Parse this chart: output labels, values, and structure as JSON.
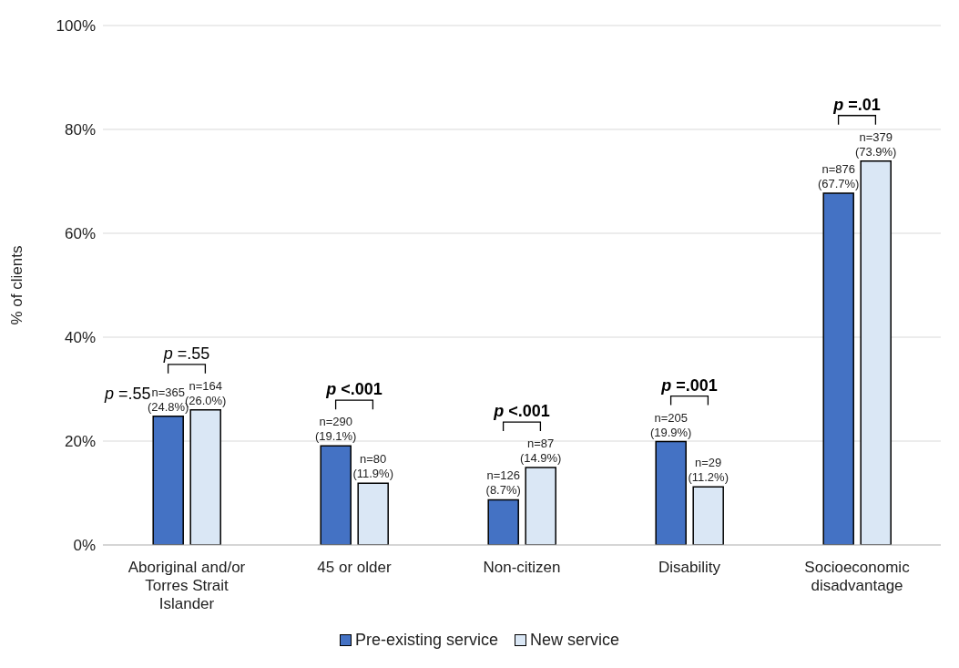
{
  "chart_data": {
    "type": "bar",
    "ylabel": "% of clients",
    "categories": [
      "Aboriginal and/or Torres Strait Islander",
      "45 or older",
      "Non-citizen",
      "Disability",
      "Socioeconomic disadvantage"
    ],
    "series": [
      {
        "name": "Pre-existing service",
        "color": "#4472c4",
        "values": [
          24.8,
          19.1,
          8.7,
          19.9,
          67.7
        ],
        "value_labels": [
          "n=365 (24.8%)",
          "n=290 (19.1%)",
          "n=126 (8.7%)",
          "n=205 (19.9%)",
          "n=876 (67.7%)"
        ]
      },
      {
        "name": "New service",
        "color": "#dae7f5",
        "values": [
          26.0,
          11.9,
          14.9,
          11.2,
          73.9
        ],
        "value_labels": [
          "n=164 (26.0%)",
          "n=80 (11.9%)",
          "n=87 (14.9%)",
          "n=29 (11.2%)",
          "n=379 (73.9%)"
        ]
      }
    ],
    "ylim": [
      0,
      100
    ],
    "yticks": [
      {
        "value": 0,
        "label": "0%"
      },
      {
        "value": 20,
        "label": "20%"
      },
      {
        "value": 40,
        "label": "40%"
      },
      {
        "value": 60,
        "label": "60%"
      },
      {
        "value": 80,
        "label": "80%"
      },
      {
        "value": 100,
        "label": "100%"
      }
    ],
    "grid": "y",
    "legend": "bottom",
    "annotations": [
      "p =.55",
      "p <.001",
      "p <.001",
      "p =.001",
      "p =.01",
      "p =.55"
    ]
  }
}
